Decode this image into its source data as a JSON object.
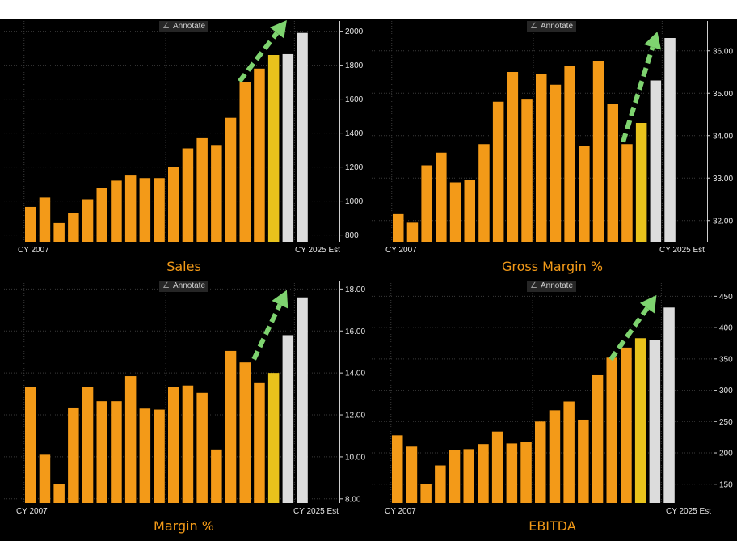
{
  "colors": {
    "historical": "#f39a18",
    "current": "#e8c21c",
    "estimate": "#dcdcdc",
    "trend_arrow": "#7ed36f",
    "grid": "#3a3a3a",
    "title": "#f39a18"
  },
  "annotate_label": "Annotate",
  "chart_data": [
    {
      "type": "bar",
      "title": "Sales",
      "x_first_label": "CY 2007",
      "x_last_label": "CY 2025 Est",
      "ylim": [
        760,
        2060
      ],
      "yticks": [
        800,
        1000,
        1200,
        1400,
        1600,
        1800,
        2000
      ],
      "ytick_labels": [
        "800",
        "1000",
        "1200",
        "1400",
        "1600",
        "1800",
        "2000"
      ],
      "values": [
        965,
        1020,
        870,
        930,
        1010,
        1075,
        1120,
        1150,
        1135,
        1135,
        1200,
        1310,
        1370,
        1330,
        1490,
        1700,
        1780,
        1860,
        1865,
        1990
      ],
      "bar_kind": [
        "hist",
        "hist",
        "hist",
        "hist",
        "hist",
        "hist",
        "hist",
        "hist",
        "hist",
        "hist",
        "hist",
        "hist",
        "hist",
        "hist",
        "hist",
        "hist",
        "hist",
        "current",
        "est",
        "est"
      ],
      "trend_arrow": {
        "from": [
          15,
          1705
        ],
        "to": [
          18.3,
          2065
        ]
      }
    },
    {
      "type": "bar",
      "title": "Gross Margin %",
      "x_first_label": "CY 2007",
      "x_last_label": "CY 2025 Est",
      "ylim": [
        31.5,
        36.7
      ],
      "yticks": [
        32.0,
        33.0,
        34.0,
        35.0,
        36.0
      ],
      "ytick_labels": [
        "32.00",
        "33.00",
        "34.00",
        "35.00",
        "36.00"
      ],
      "values": [
        32.15,
        31.95,
        33.3,
        33.6,
        32.9,
        32.95,
        33.8,
        34.8,
        35.5,
        34.85,
        35.45,
        35.2,
        35.65,
        33.75,
        35.75,
        34.75,
        33.8,
        34.3,
        35.3,
        36.3
      ],
      "bar_kind": [
        "hist",
        "hist",
        "hist",
        "hist",
        "hist",
        "hist",
        "hist",
        "hist",
        "hist",
        "hist",
        "hist",
        "hist",
        "hist",
        "hist",
        "hist",
        "hist",
        "hist",
        "current",
        "est",
        "est"
      ],
      "trend_arrow": {
        "from": [
          16.1,
          33.85
        ],
        "to": [
          18.5,
          36.45
        ]
      }
    },
    {
      "type": "bar",
      "title": "Margin %",
      "x_first_label": "CY 2007",
      "x_last_label": "CY 2025 Est",
      "ylim": [
        7.8,
        18.4
      ],
      "yticks": [
        8.0,
        10.0,
        12.0,
        14.0,
        16.0,
        18.0
      ],
      "ytick_labels": [
        "8.00",
        "10.00",
        "12.00",
        "14.00",
        "16.00",
        "18.00"
      ],
      "values": [
        13.35,
        10.1,
        8.7,
        12.35,
        13.35,
        12.65,
        12.65,
        13.85,
        12.3,
        12.25,
        13.35,
        13.4,
        13.05,
        10.35,
        15.05,
        14.5,
        13.55,
        14.0,
        15.8,
        17.6
      ],
      "bar_kind": [
        "hist",
        "hist",
        "hist",
        "hist",
        "hist",
        "hist",
        "hist",
        "hist",
        "hist",
        "hist",
        "hist",
        "hist",
        "hist",
        "hist",
        "hist",
        "hist",
        "hist",
        "current",
        "est",
        "est"
      ],
      "trend_arrow": {
        "from": [
          16.0,
          14.65
        ],
        "to": [
          18.3,
          17.95
        ]
      }
    },
    {
      "type": "bar",
      "title": "EBITDA",
      "x_first_label": "CY 2007",
      "x_last_label": "CY 2025 Est",
      "ylim": [
        120,
        475
      ],
      "yticks": [
        150,
        200,
        250,
        300,
        350,
        400,
        450
      ],
      "ytick_labels": [
        "150",
        "200",
        "250",
        "300",
        "350",
        "400",
        "450"
      ],
      "values": [
        228,
        210,
        150,
        180,
        204,
        206,
        214,
        234,
        215,
        217,
        250,
        268,
        282,
        253,
        324,
        352,
        368,
        383,
        380,
        432
      ],
      "bar_kind": [
        "hist",
        "hist",
        "hist",
        "hist",
        "hist",
        "hist",
        "hist",
        "hist",
        "hist",
        "hist",
        "hist",
        "hist",
        "hist",
        "hist",
        "hist",
        "hist",
        "hist",
        "current",
        "est",
        "est"
      ],
      "trend_arrow": {
        "from": [
          15.3,
          349
        ],
        "to": [
          18.5,
          452
        ]
      }
    }
  ]
}
